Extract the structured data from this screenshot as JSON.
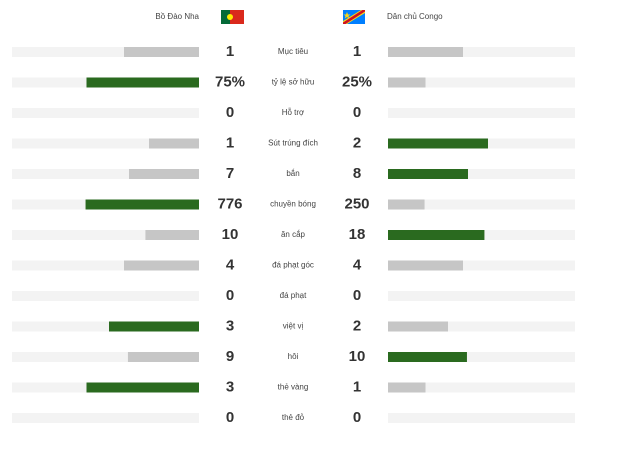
{
  "teams": {
    "home": "Bồ Đào Nha",
    "away": "Dân chủ Congo"
  },
  "stats": [
    {
      "label": "Mục tiêu",
      "home": 1,
      "away": 1
    },
    {
      "label": "tỷ lệ sở hữu",
      "home": 75,
      "away": 25,
      "home_label": "75%",
      "away_label": "25%"
    },
    {
      "label": "Hỗ trợ",
      "home": 0,
      "away": 0
    },
    {
      "label": "Sút trúng đích",
      "home": 1,
      "away": 2
    },
    {
      "label": "bắn",
      "home": 7,
      "away": 8
    },
    {
      "label": "chuyền bóng",
      "home": 776,
      "away": 250
    },
    {
      "label": "ăn cắp",
      "home": 10,
      "away": 18
    },
    {
      "label": "đá phạt góc",
      "home": 4,
      "away": 4
    },
    {
      "label": "đá phạt",
      "home": 0,
      "away": 0
    },
    {
      "label": "việt vị",
      "home": 3,
      "away": 2
    },
    {
      "label": "hôi",
      "home": 9,
      "away": 10
    },
    {
      "label": "thẻ vàng",
      "home": 3,
      "away": 1
    },
    {
      "label": "thẻ đỏ",
      "home": 0,
      "away": 0
    }
  ]
}
